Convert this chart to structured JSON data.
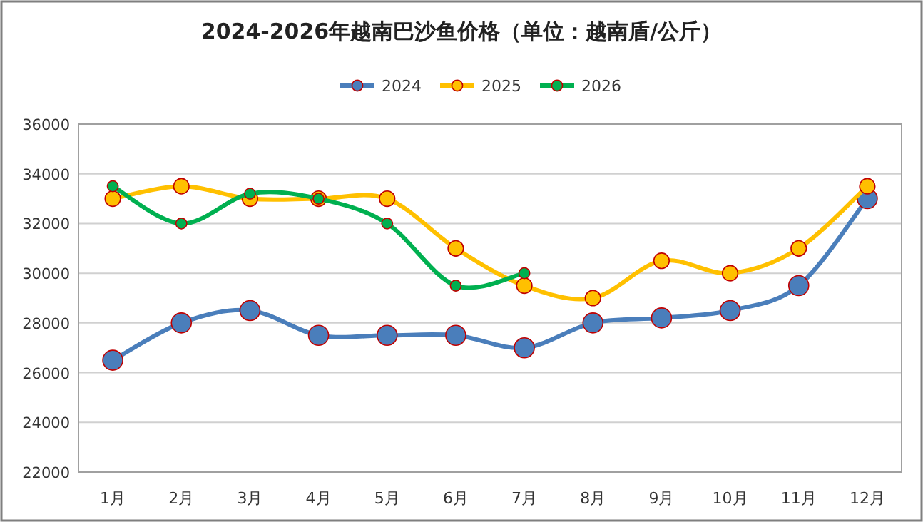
{
  "chart_data": {
    "type": "line",
    "title": "2024-2026年越南巴沙鱼价格（单位：越南盾/公斤）",
    "categories": [
      "1月",
      "2月",
      "3月",
      "4月",
      "5月",
      "6月",
      "7月",
      "8月",
      "9月",
      "10月",
      "11月",
      "12月"
    ],
    "series": [
      {
        "name": "2024",
        "color": "#4a7ebb",
        "values": [
          26500,
          28000,
          28500,
          27500,
          27500,
          27500,
          27000,
          28000,
          28200,
          28500,
          29500,
          33000
        ]
      },
      {
        "name": "2025",
        "color": "#ffc000",
        "values": [
          33000,
          33500,
          33000,
          33000,
          33000,
          31000,
          29500,
          29000,
          30500,
          30000,
          31000,
          33500
        ]
      },
      {
        "name": "2026",
        "color": "#00b050",
        "values": [
          33500,
          32000,
          33200,
          33000,
          32000,
          29500,
          30000,
          null,
          null,
          null,
          null,
          null
        ]
      }
    ],
    "ylim": [
      22000,
      36000
    ],
    "yticks": [
      22000,
      24000,
      26000,
      28000,
      30000,
      32000,
      34000,
      36000
    ],
    "grid": "y",
    "legend": "top",
    "marker": "circle"
  }
}
